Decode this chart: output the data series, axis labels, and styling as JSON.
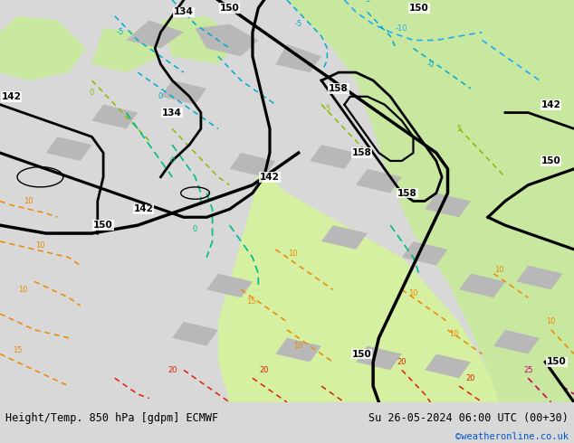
{
  "title_left": "Height/Temp. 850 hPa [gdpm] ECMWF",
  "title_right": "Su 26-05-2024 06:00 UTC (00+30)",
  "credit": "©weatheronline.co.uk",
  "fig_width": 6.34,
  "fig_height": 4.9,
  "dpi": 100,
  "map_bg": "#e8e8e8",
  "land_green": "#c8e8a0",
  "land_green2": "#d4f0a0",
  "bottom_bar_color": "#d8d8d8",
  "credit_color": "#0055cc",
  "text_color": "#000000",
  "title_fontsize": 8.5,
  "credit_fontsize": 7.5,
  "gray_land": "#b8b8b8",
  "black_contour_lw": 2.0,
  "thin_black_lw": 1.2,
  "temp_lw": 1.1,
  "cyan_color": "#00aacc",
  "cyan_blue": "#22aaff",
  "green_temp": "#88cc00",
  "teal_color": "#00bb88",
  "orange_color": "#ee8800",
  "red_color": "#dd2200",
  "magenta_color": "#cc0066"
}
